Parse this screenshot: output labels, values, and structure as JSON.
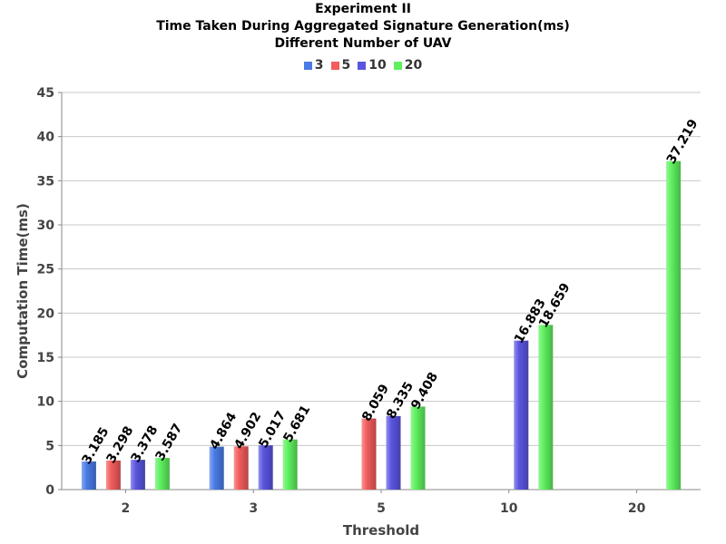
{
  "chart_data": {
    "type": "bar",
    "title_lines": [
      "Experiment II",
      "Time Taken During Aggregated Signature Generation(ms)",
      "Different Number of UAV"
    ],
    "xlabel": "Threshold",
    "ylabel": "Computation Time(ms)",
    "categories": [
      "2",
      "3",
      "5",
      "10",
      "20"
    ],
    "ylim": [
      0,
      45
    ],
    "y_ticks": [
      0,
      5,
      10,
      15,
      20,
      25,
      30,
      35,
      40,
      45
    ],
    "grid": true,
    "legend_position": "top-center",
    "series": [
      {
        "name": "3",
        "color": "#4a7ae6",
        "values": [
          3.185,
          4.864,
          null,
          null,
          null
        ]
      },
      {
        "name": "5",
        "color": "#f25c5c",
        "values": [
          3.298,
          4.902,
          8.059,
          null,
          null
        ]
      },
      {
        "name": "10",
        "color": "#5a55e0",
        "values": [
          3.378,
          5.017,
          8.335,
          16.883,
          null
        ]
      },
      {
        "name": "20",
        "color": "#5ef05e",
        "values": [
          3.587,
          5.681,
          9.408,
          18.659,
          37.219
        ]
      }
    ]
  }
}
